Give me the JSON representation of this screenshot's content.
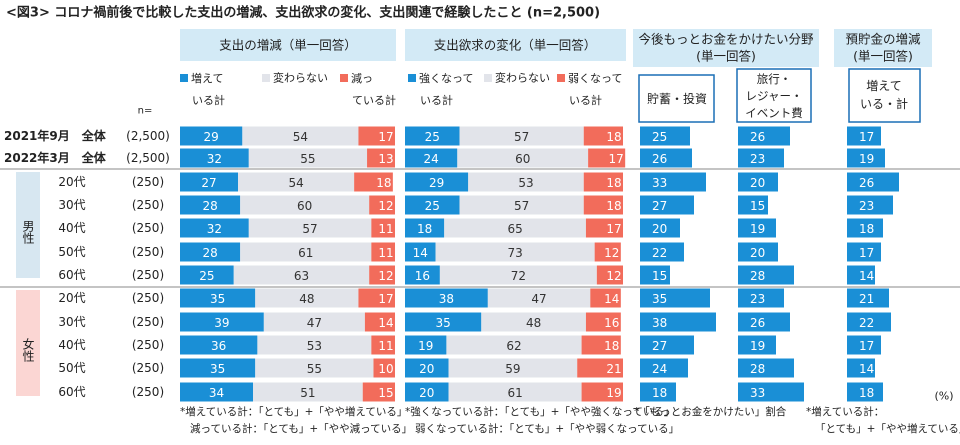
{
  "figure_title": "<図3> コロナ禍前後で比較した支出の増減、支出欲求の変化、支出関連で経験したこと (n=2,500)",
  "n_label": "n=",
  "unit_label": "(%)",
  "colors": {
    "blue": "#1a8fd6",
    "gray": "#e2e4ea",
    "red": "#f26c5b",
    "header_bg": "#d3eaf6",
    "male_bg": "#d7e7f1",
    "female_bg": "#fbd6d3",
    "divider": "#8a8a8a"
  },
  "row_groups": {
    "male": "男性",
    "female": "女性"
  },
  "rows": [
    {
      "label": "2021年9月　全体",
      "n": "(2,500)"
    },
    {
      "label": "2022年3月　全体",
      "n": "(2,500)"
    },
    {
      "label": "20代",
      "n": "(250)"
    },
    {
      "label": "30代",
      "n": "(250)"
    },
    {
      "label": "40代",
      "n": "(250)"
    },
    {
      "label": "50代",
      "n": "(250)"
    },
    {
      "label": "60代",
      "n": "(250)"
    },
    {
      "label": "20代",
      "n": "(250)"
    },
    {
      "label": "30代",
      "n": "(250)"
    },
    {
      "label": "40代",
      "n": "(250)"
    },
    {
      "label": "50代",
      "n": "(250)"
    },
    {
      "label": "60代",
      "n": "(250)"
    }
  ],
  "chart_data": [
    {
      "type": "bar",
      "stacked": true,
      "title": "支出の増減（単一回答）",
      "legend": [
        "増えている計",
        "変わらない",
        "減っている計"
      ],
      "series": [
        {
          "name": "増えている計",
          "color": "blue",
          "values": [
            29,
            32,
            27,
            28,
            32,
            28,
            25,
            35,
            39,
            36,
            35,
            34
          ]
        },
        {
          "name": "変わらない",
          "color": "gray",
          "values": [
            54,
            55,
            54,
            60,
            57,
            61,
            63,
            48,
            47,
            53,
            55,
            51
          ]
        },
        {
          "name": "減っている計",
          "color": "red",
          "values": [
            17,
            13,
            18,
            12,
            11,
            11,
            12,
            17,
            14,
            11,
            10,
            15
          ]
        }
      ],
      "xlim": [
        0,
        100
      ],
      "footnotes": [
        "*増えている計：「とても」+「やや増えている」",
        "減っている計：「とても」+「やや減っている」"
      ]
    },
    {
      "type": "bar",
      "stacked": true,
      "title": "支出欲求の変化（単一回答）",
      "legend": [
        "強くなっている計",
        "変わらない",
        "弱くなっている計"
      ],
      "series": [
        {
          "name": "強くなっている計",
          "color": "blue",
          "values": [
            25,
            24,
            29,
            25,
            18,
            14,
            16,
            38,
            35,
            19,
            20,
            20
          ]
        },
        {
          "name": "変わらない",
          "color": "gray",
          "values": [
            57,
            60,
            53,
            57,
            65,
            73,
            72,
            47,
            48,
            62,
            59,
            61
          ]
        },
        {
          "name": "弱くなっている計",
          "color": "red",
          "values": [
            18,
            17,
            18,
            18,
            17,
            12,
            12,
            14,
            16,
            18,
            21,
            19
          ]
        }
      ],
      "xlim": [
        0,
        100
      ],
      "footnotes": [
        "*強くなっている計：「とても」+「やや強くなっている」",
        "弱くなっている計：「とても」+「やや弱くなっている」"
      ]
    },
    {
      "type": "bar",
      "title": "今後もっとお金をかけたい分野",
      "subtitle": "(単一回答)",
      "footnotes": [
        "*「もっとお金をかけたい」割合"
      ],
      "panels": [
        {
          "label": "貯蓄・投資",
          "values": [
            25,
            26,
            33,
            27,
            20,
            22,
            15,
            35,
            38,
            27,
            24,
            18
          ]
        },
        {
          "label": "旅行・レジャー・イベント費",
          "label_lines": [
            "旅行・",
            "レジャー・",
            "イベント費"
          ],
          "values": [
            26,
            23,
            20,
            15,
            19,
            20,
            28,
            23,
            26,
            19,
            28,
            33
          ]
        }
      ],
      "xlim": [
        0,
        45
      ]
    },
    {
      "type": "bar",
      "title": "預貯金の増減",
      "subtitle": "(単一回答)",
      "footnotes": [
        "*増えている計：",
        "「とても」+「やや増えている」"
      ],
      "panels": [
        {
          "label": "増えている・計",
          "label_lines": [
            "増えて",
            "いる・計"
          ],
          "values": [
            17,
            19,
            26,
            23,
            18,
            17,
            14,
            21,
            22,
            17,
            14,
            18
          ]
        }
      ],
      "xlim": [
        0,
        45
      ]
    }
  ]
}
